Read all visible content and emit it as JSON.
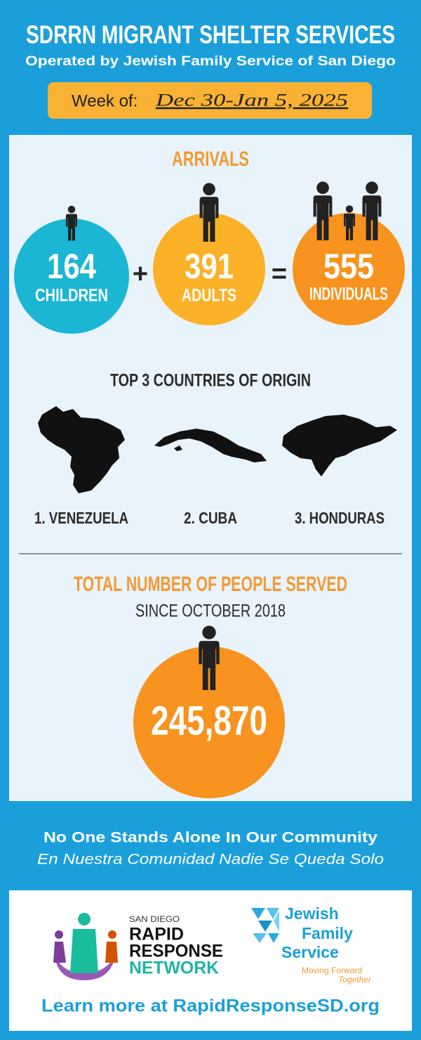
{
  "header": {
    "title": "SDRRN MIGRANT SHELTER SERVICES",
    "subtitle": "Operated by Jewish Family Service of San Diego",
    "week_label": "Week of:",
    "week": "Dec 30-Jan 5, 2025"
  },
  "arrivals": {
    "title": "ARRIVALS",
    "children": {
      "value": "164",
      "label": "CHILDREN"
    },
    "plus": "+",
    "adults": {
      "value": "391",
      "label": "ADULTS"
    },
    "equals": "=",
    "total": {
      "value": "555",
      "label": "INDIVIDUALS"
    }
  },
  "countries": {
    "title": "TOP 3 COUNTRIES OF ORIGIN",
    "items": [
      "1. VENEZUELA",
      "2. CUBA",
      "3. HONDURAS"
    ]
  },
  "total_served": {
    "title": "TOTAL NUMBER OF PEOPLE SERVED",
    "subtitle": "SINCE OCTOBER 2018",
    "value": "245,870"
  },
  "tagline": {
    "en": "No One Stands Alone In Our Community",
    "es": "En Nuestra Comunidad Nadie Se Queda Solo"
  },
  "footer": {
    "logo_rrn": {
      "line1": "SAN DIEGO",
      "line2": "RAPID",
      "line3": "RESPONSE",
      "line4": "NETWORK"
    },
    "logo_jfs": {
      "line1": "Jewish",
      "line2": "Family",
      "line3": "Service",
      "tag1": "Moving Forward",
      "tag2": "Together"
    },
    "link": "Learn more at RapidResponseSD.org"
  }
}
